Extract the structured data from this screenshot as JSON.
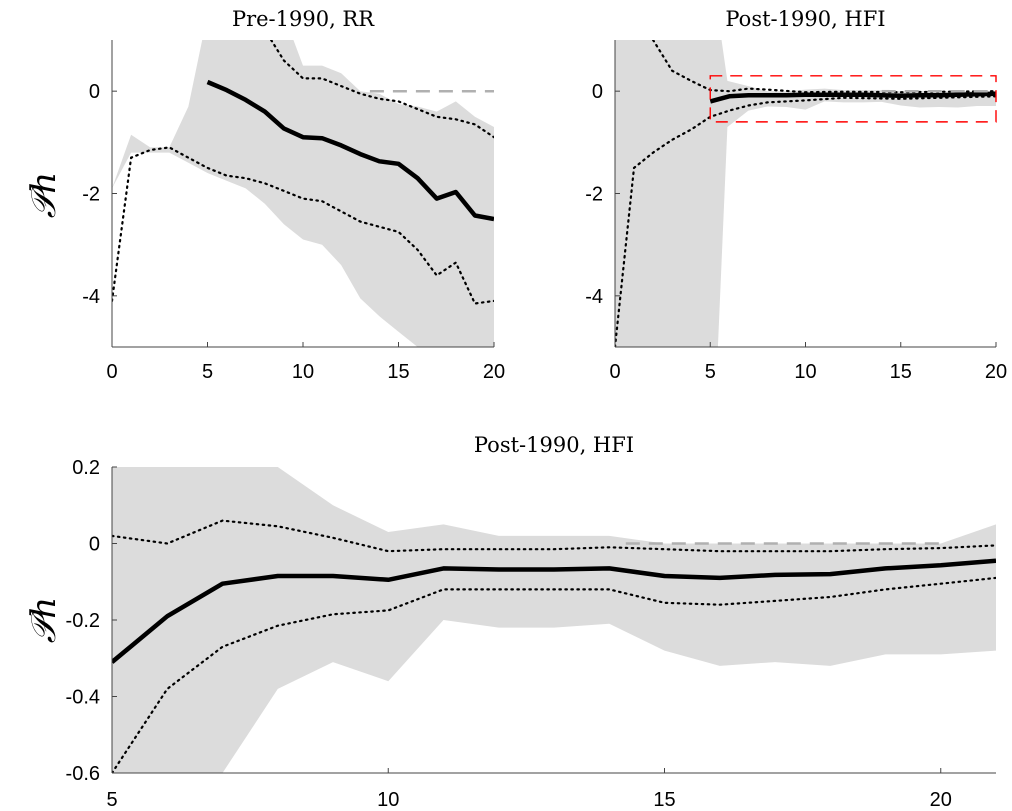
{
  "chart_data": [
    {
      "type": "line",
      "title": "Pre-1990, RR",
      "ylabel": "𝒫h",
      "xlim": [
        0,
        20
      ],
      "ylim": [
        -5,
        1
      ],
      "xticks": [
        0,
        5,
        10,
        15,
        20
      ],
      "yticks": [
        -4,
        -2,
        0
      ],
      "ytick_labels": [
        "-4",
        "-2",
        "0"
      ],
      "band": {
        "x": [
          0,
          1,
          2,
          3,
          4,
          5,
          6,
          7,
          8,
          9,
          10,
          11,
          12,
          13,
          14,
          15,
          16,
          17,
          18,
          19,
          20
        ],
        "upper": [
          -1.9,
          -0.85,
          -1.1,
          -1.1,
          -0.3,
          1.5,
          1.5,
          1.5,
          1.5,
          1.5,
          0.5,
          0.5,
          0.35,
          0.0,
          -0.05,
          -0.25,
          -0.3,
          -0.4,
          -0.2,
          -0.5,
          -0.7
        ],
        "lower": [
          -1.9,
          -1.2,
          -1.2,
          -1.2,
          -1.4,
          -1.6,
          -1.75,
          -1.9,
          -2.2,
          -2.6,
          -2.9,
          -3.0,
          -3.4,
          -4.05,
          -4.4,
          -4.7,
          -5.0,
          -5.0,
          -5.0,
          -5.0,
          -5.0
        ]
      },
      "series": [
        {
          "values_x": [
            5,
            6,
            7,
            8,
            9,
            10,
            11,
            12,
            13,
            14,
            15,
            16,
            17,
            18,
            19,
            20
          ],
          "values": [
            0.18,
            0.02,
            -0.17,
            -0.4,
            -0.73,
            -0.9,
            -0.92,
            -1.06,
            -1.23,
            -1.37,
            -1.42,
            -1.7,
            -2.1,
            -1.97,
            -2.43,
            -2.5
          ],
          "style": "solid"
        },
        {
          "values_x": [
            0,
            1,
            2,
            3,
            4,
            5,
            6,
            7,
            8,
            9,
            10,
            11,
            12,
            13,
            14,
            15,
            16,
            17,
            18,
            19,
            20
          ],
          "values": [
            -4.1,
            -1.3,
            -1.15,
            -1.1,
            -1.3,
            -1.5,
            -1.65,
            -1.7,
            -1.8,
            -1.95,
            -2.1,
            -2.15,
            -2.35,
            -2.55,
            -2.65,
            -2.75,
            -3.1,
            -3.6,
            -3.35,
            -4.15,
            -4.1
          ],
          "style": "dotted"
        },
        {
          "values_x": [
            8,
            9,
            10,
            11,
            12,
            13,
            14,
            15,
            16,
            17,
            18,
            19,
            20
          ],
          "values": [
            1.2,
            0.6,
            0.25,
            0.25,
            0.1,
            -0.05,
            -0.15,
            -0.2,
            -0.35,
            -0.5,
            -0.55,
            -0.65,
            -0.9
          ],
          "style": "dotted"
        },
        {
          "values_x": [
            13.5,
            20
          ],
          "values": [
            0,
            0
          ],
          "style": "dashed-gray"
        }
      ]
    },
    {
      "type": "line",
      "title": "Post-1990, HFI",
      "ylabel": "",
      "xlim": [
        0,
        20
      ],
      "ylim": [
        -5,
        1
      ],
      "xticks": [
        0,
        5,
        10,
        15,
        20
      ],
      "yticks": [
        -4,
        -2,
        0
      ],
      "ytick_labels": [
        "-4",
        "-2",
        "0"
      ],
      "band": {
        "x": [
          0,
          1,
          2,
          3,
          4,
          5,
          5.4,
          5.9,
          7,
          8,
          9,
          10,
          11,
          12,
          13,
          14,
          15,
          16,
          17,
          18,
          19,
          20,
          21
        ],
        "upper": [
          1.5,
          1.5,
          1.5,
          1.5,
          1.5,
          1.5,
          1.5,
          0.2,
          0.1,
          0.0,
          0.0,
          0.03,
          0.05,
          0.02,
          0.02,
          0.02,
          0.0,
          0.0,
          0.0,
          0.0,
          0.0,
          0.0,
          0.05
        ],
        "lower": [
          -5.0,
          -5.0,
          -5.0,
          -5.0,
          -5.0,
          -5.0,
          -5.0,
          -0.7,
          -0.38,
          -0.3,
          -0.31,
          -0.36,
          -0.2,
          -0.22,
          -0.22,
          -0.21,
          -0.28,
          -0.32,
          -0.31,
          -0.32,
          -0.29,
          -0.29,
          -0.28
        ]
      },
      "series": [
        {
          "values_x": [
            5,
            6,
            7,
            8,
            9,
            10,
            11,
            12,
            13,
            14,
            15,
            16,
            17,
            18,
            19,
            20
          ],
          "values": [
            -0.2,
            -0.1,
            -0.08,
            -0.08,
            -0.08,
            -0.07,
            -0.07,
            -0.07,
            -0.07,
            -0.08,
            -0.09,
            -0.08,
            -0.08,
            -0.07,
            -0.06,
            -0.05
          ],
          "style": "solid"
        },
        {
          "values_x": [
            0,
            1,
            2,
            3,
            4,
            5,
            6,
            7,
            8,
            10,
            12,
            15,
            20
          ],
          "values": [
            -5.0,
            -1.5,
            -1.2,
            -0.95,
            -0.75,
            -0.5,
            -0.38,
            -0.28,
            -0.22,
            -0.18,
            -0.13,
            -0.15,
            -0.1
          ],
          "style": "dotted"
        },
        {
          "values_x": [
            2,
            3,
            4,
            5,
            6,
            7,
            8,
            10,
            12,
            15,
            20
          ],
          "values": [
            1.0,
            0.4,
            0.2,
            0.02,
            0.0,
            0.05,
            0.03,
            -0.02,
            -0.01,
            -0.02,
            0.0
          ],
          "style": "dotted"
        },
        {
          "values_x": [
            14,
            20
          ],
          "values": [
            0,
            0
          ],
          "style": "dashed-gray"
        }
      ],
      "highlight_box": {
        "x": [
          5,
          20
        ],
        "y": [
          -0.6,
          0.3
        ],
        "color": "#ff0000"
      }
    },
    {
      "type": "line",
      "title": "Post-1990, HFI",
      "ylabel": "𝒫h",
      "xlim": [
        5,
        21
      ],
      "ylim": [
        -0.6,
        0.2
      ],
      "xticks": [
        5,
        10,
        15,
        20
      ],
      "yticks": [
        -0.6,
        -0.4,
        -0.2,
        0,
        0.2
      ],
      "ytick_labels": [
        "-0.6",
        "-0.4",
        "-0.2",
        "0",
        "0.2"
      ],
      "band": {
        "x": [
          5,
          5.9,
          7,
          8,
          9,
          10,
          11,
          12,
          13,
          14,
          15,
          16,
          17,
          18,
          19,
          20,
          21
        ],
        "upper": [
          0.2,
          0.2,
          0.2,
          0.2,
          0.1,
          0.03,
          0.05,
          0.02,
          0.02,
          0.02,
          0.0,
          0.0,
          0.0,
          0.0,
          0.0,
          0.0,
          0.05
        ],
        "lower": [
          -0.6,
          -0.6,
          -0.6,
          -0.38,
          -0.31,
          -0.36,
          -0.2,
          -0.22,
          -0.22,
          -0.21,
          -0.28,
          -0.32,
          -0.31,
          -0.32,
          -0.29,
          -0.29,
          -0.28
        ]
      },
      "series": [
        {
          "values_x": [
            5,
            6,
            7,
            8,
            9,
            10,
            11,
            12,
            13,
            14,
            15,
            16,
            17,
            18,
            19,
            20,
            21
          ],
          "values": [
            -0.31,
            -0.19,
            -0.105,
            -0.085,
            -0.085,
            -0.095,
            -0.065,
            -0.068,
            -0.068,
            -0.065,
            -0.085,
            -0.09,
            -0.082,
            -0.08,
            -0.065,
            -0.057,
            -0.045
          ],
          "style": "solid"
        },
        {
          "values_x": [
            5,
            6,
            7,
            8,
            9,
            10,
            11,
            12,
            13,
            14,
            15,
            16,
            17,
            18,
            19,
            20,
            21
          ],
          "values": [
            -0.6,
            -0.38,
            -0.27,
            -0.215,
            -0.185,
            -0.175,
            -0.12,
            -0.12,
            -0.12,
            -0.12,
            -0.155,
            -0.16,
            -0.15,
            -0.14,
            -0.12,
            -0.105,
            -0.09
          ],
          "style": "dotted"
        },
        {
          "values_x": [
            5,
            6,
            7,
            8,
            9,
            10,
            11,
            12,
            13,
            14,
            15,
            16,
            17,
            18,
            19,
            20,
            21
          ],
          "values": [
            0.02,
            0.0,
            0.06,
            0.045,
            0.015,
            -0.02,
            -0.015,
            -0.015,
            -0.015,
            -0.01,
            -0.015,
            -0.02,
            -0.02,
            -0.02,
            -0.015,
            -0.012,
            -0.005
          ],
          "style": "dotted"
        },
        {
          "values_x": [
            14.3,
            20
          ],
          "values": [
            0,
            0
          ],
          "style": "dashed-gray"
        }
      ]
    }
  ]
}
